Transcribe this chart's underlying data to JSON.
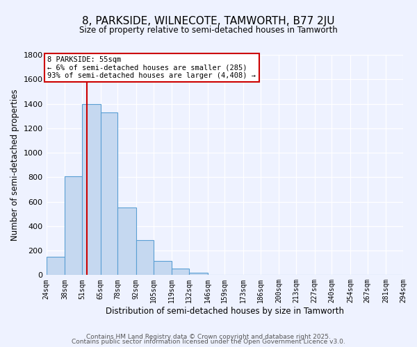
{
  "title": "8, PARKSIDE, WILNECOTE, TAMWORTH, B77 2JU",
  "subtitle": "Size of property relative to semi-detached houses in Tamworth",
  "xlabel": "Distribution of semi-detached houses by size in Tamworth",
  "ylabel": "Number of semi-detached properties",
  "bin_labels": [
    "24sqm",
    "38sqm",
    "51sqm",
    "65sqm",
    "78sqm",
    "92sqm",
    "105sqm",
    "119sqm",
    "132sqm",
    "146sqm",
    "159sqm",
    "173sqm",
    "186sqm",
    "200sqm",
    "213sqm",
    "227sqm",
    "240sqm",
    "254sqm",
    "267sqm",
    "281sqm",
    "294sqm"
  ],
  "bin_edges": [
    24,
    38,
    51,
    65,
    78,
    92,
    105,
    119,
    132,
    146,
    159,
    173,
    186,
    200,
    213,
    227,
    240,
    254,
    267,
    281,
    294
  ],
  "bar_heights": [
    150,
    810,
    1400,
    1330,
    550,
    285,
    115,
    55,
    20,
    0,
    0,
    0,
    0,
    0,
    0,
    0,
    0,
    0,
    0,
    0
  ],
  "bar_color": "#c5d8f0",
  "bar_edge_color": "#5a9fd4",
  "property_value": 55,
  "vline_color": "#cc0000",
  "annotation_title": "8 PARKSIDE: 55sqm",
  "annotation_line1": "← 6% of semi-detached houses are smaller (285)",
  "annotation_line2": "93% of semi-detached houses are larger (4,408) →",
  "annotation_box_color": "#ffffff",
  "annotation_box_edge": "#cc0000",
  "ylim": [
    0,
    1800
  ],
  "yticks": [
    0,
    200,
    400,
    600,
    800,
    1000,
    1200,
    1400,
    1600,
    1800
  ],
  "background_color": "#eef2ff",
  "footer_line1": "Contains HM Land Registry data © Crown copyright and database right 2025.",
  "footer_line2": "Contains public sector information licensed under the Open Government Licence v3.0."
}
